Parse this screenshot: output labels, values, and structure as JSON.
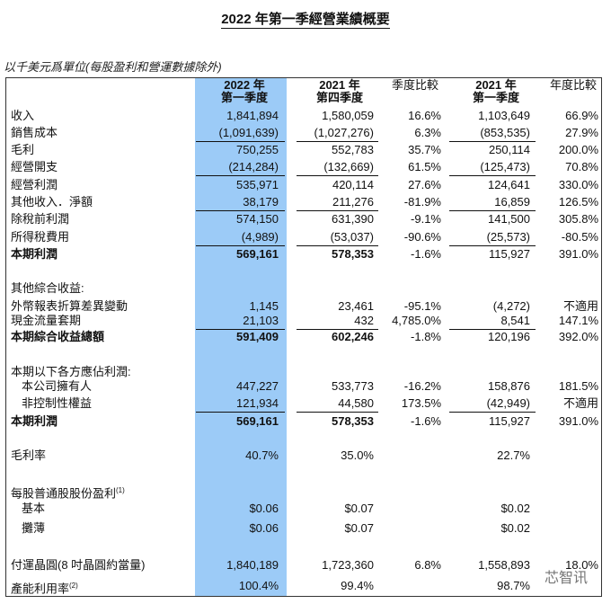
{
  "title": "2022 年第一季經營業績概要",
  "unit_note": "以千美元爲單位(每股盈利和營運數據除外)",
  "headers": {
    "col1": [
      "2022 年",
      "第一季度"
    ],
    "col2": [
      "2021 年",
      "第四季度"
    ],
    "col3": "季度比較",
    "col4": [
      "2021 年",
      "第一季度"
    ],
    "col5": "年度比較"
  },
  "highlight_color": "#9ccbf7",
  "rows": [
    {
      "label": "收入",
      "v": [
        "1,841,894",
        "1,580,059",
        "16.6%",
        "1,103,649",
        "66.9%"
      ]
    },
    {
      "label": "銷售成本",
      "v": [
        "(1,091,639)",
        "(1,027,276)",
        "6.3%",
        "(853,535)",
        "27.9%"
      ],
      "underline": true
    },
    {
      "label": "毛利",
      "v": [
        "750,255",
        "552,783",
        "35.7%",
        "250,114",
        "200.0%"
      ]
    },
    {
      "label": "經營開支",
      "v": [
        "(214,284)",
        "(132,669)",
        "61.5%",
        "(125,473)",
        "70.8%"
      ],
      "underline": true
    },
    {
      "label": "經營利潤",
      "v": [
        "535,971",
        "420,114",
        "27.6%",
        "124,641",
        "330.0%"
      ]
    },
    {
      "label": "其他收入．淨額",
      "v": [
        "38,179",
        "211,276",
        "-81.9%",
        "16,859",
        "126.5%"
      ],
      "underline": true
    },
    {
      "label": "除稅前利潤",
      "v": [
        "574,150",
        "631,390",
        "-9.1%",
        "141,500",
        "305.8%"
      ]
    },
    {
      "label": "所得稅費用",
      "v": [
        "(4,989)",
        "(53,037)",
        "-90.6%",
        "(25,573)",
        "-80.5%"
      ],
      "underline": true
    },
    {
      "label": "本期利潤",
      "v": [
        "569,161",
        "578,353",
        "-1.6%",
        "115,927",
        "391.0%"
      ],
      "bold": true
    },
    {
      "label": "其他綜合收益:",
      "v": []
    },
    {
      "label": "外幣報表折算差異變動",
      "v": [
        "1,145",
        "23,461",
        "-95.1%",
        "(4,272)",
        "不適用"
      ]
    },
    {
      "label": "現金流量套期",
      "v": [
        "21,103",
        "432",
        "4,785.0%",
        "8,541",
        "147.1%"
      ],
      "underline": true
    },
    {
      "label": "本期綜合收益總額",
      "v": [
        "591,409",
        "602,246",
        "-1.8%",
        "120,196",
        "392.0%"
      ],
      "bold": true
    },
    {
      "label": "本期以下各方應佔利潤:",
      "v": []
    },
    {
      "label": "本公司擁有人",
      "v": [
        "447,227",
        "533,773",
        "-16.2%",
        "158,876",
        "181.5%"
      ],
      "indent": true
    },
    {
      "label": "非控制性權益",
      "v": [
        "121,934",
        "44,580",
        "173.5%",
        "(42,949)",
        "不適用"
      ],
      "indent": true,
      "underline": true
    },
    {
      "label": "本期利潤",
      "v": [
        "569,161",
        "578,353",
        "-1.6%",
        "115,927",
        "391.0%"
      ],
      "bold": true
    },
    {
      "label": "毛利率",
      "v": [
        "40.7%",
        "35.0%",
        "",
        "22.7%",
        ""
      ]
    },
    {
      "label": "每股普通股股份盈利",
      "sup": "(1)",
      "v": []
    },
    {
      "label": "基本",
      "v": [
        "$0.06",
        "$0.07",
        "",
        "$0.02",
        ""
      ],
      "indent": true
    },
    {
      "label": "攤薄",
      "v": [
        "$0.06",
        "$0.07",
        "",
        "$0.02",
        ""
      ],
      "indent": true
    },
    {
      "label": "付運晶圓(8 吋晶圓約當量)",
      "v": [
        "1,840,189",
        "1,723,360",
        "6.8%",
        "1,558,893",
        "18.0%"
      ]
    },
    {
      "label": "產能利用率",
      "sup": "(2)",
      "v": [
        "100.4%",
        "99.4%",
        "",
        "98.7%",
        ""
      ]
    }
  ],
  "watermark": "芯智讯"
}
